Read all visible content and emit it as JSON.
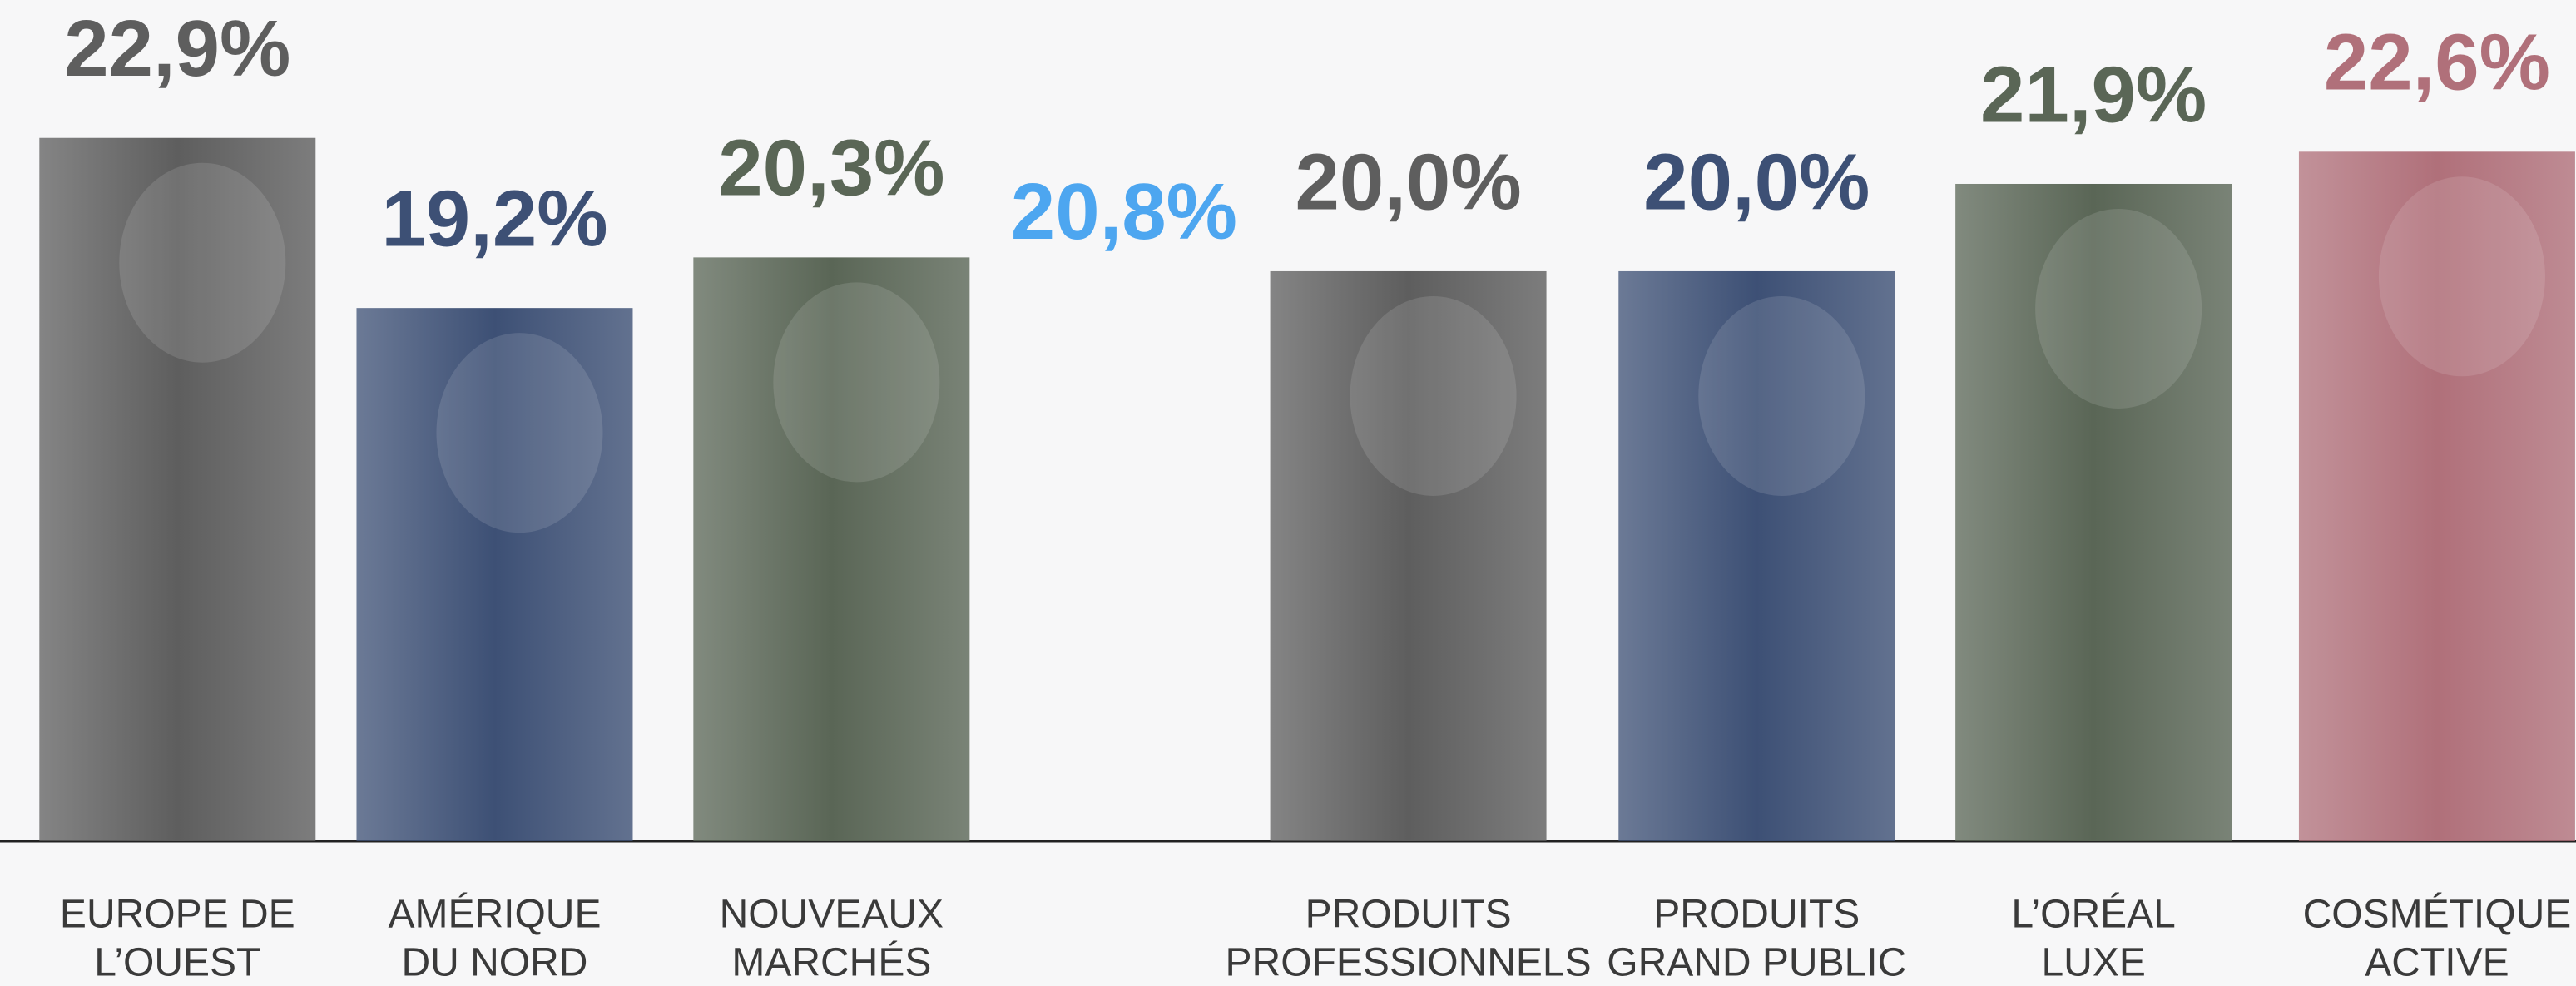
{
  "chart_data": {
    "type": "bar",
    "categories": [
      [
        "EUROPE DE",
        "L’OUEST"
      ],
      [
        "AMÉRIQUE",
        "DU NORD"
      ],
      [
        "NOUVEAUX",
        "MARCHÉS"
      ],
      [
        "PRODUITS",
        "PROFESSIONNELS"
      ],
      [
        "PRODUITS",
        "GRAND PUBLIC"
      ],
      [
        "L’ORÉAL",
        "LUXE"
      ],
      [
        "COSMÉTIQUE",
        "ACTIVE"
      ]
    ],
    "values": [
      22.9,
      19.2,
      20.3,
      20.0,
      20.0,
      21.9,
      22.6
    ],
    "value_labels": [
      "22,9%",
      "19,2%",
      "20,3%",
      "20,0%",
      "20,0%",
      "21,9%",
      "22,6%"
    ],
    "colors": [
      "#5e5e5e",
      "#3d5075",
      "#5a6656",
      "#5e5e5e",
      "#3d5075",
      "#5a6656",
      "#b0707a"
    ],
    "annotation": {
      "value": 20.8,
      "label": "20,8%",
      "color": "#4da6f0"
    },
    "ylim": [
      7.6,
      25.9
    ]
  }
}
